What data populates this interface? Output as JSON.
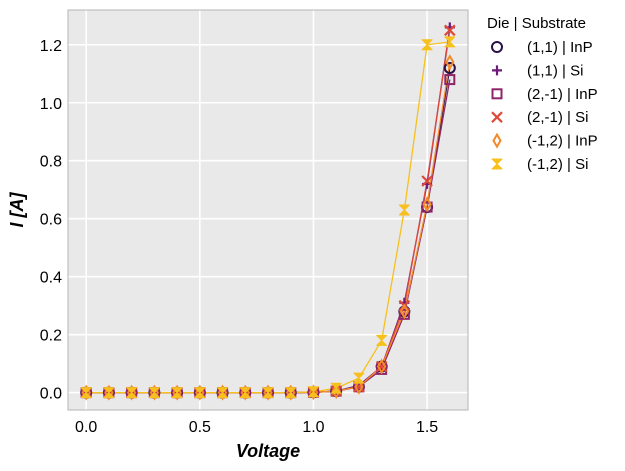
{
  "chart_data": {
    "type": "line",
    "xlabel": "Voltage",
    "ylabel": "I [A]",
    "xlim": [
      -0.08,
      1.68
    ],
    "ylim": [
      -0.06,
      1.32
    ],
    "xticks": [
      0.0,
      0.5,
      1.0,
      1.5
    ],
    "xtick_labels": [
      "0.0",
      "0.5",
      "1.0",
      "1.5"
    ],
    "yticks": [
      0.0,
      0.2,
      0.4,
      0.6,
      0.8,
      1.0,
      1.2
    ],
    "ytick_labels": [
      "0.0",
      "0.2",
      "0.4",
      "0.6",
      "0.8",
      "1.0",
      "1.2"
    ],
    "grid": true,
    "legend": {
      "title": "Die | Substrate",
      "placement": "outside-right"
    },
    "x": [
      0.0,
      0.1,
      0.2,
      0.3,
      0.4,
      0.5,
      0.6,
      0.7,
      0.8,
      0.9,
      1.0,
      1.1,
      1.2,
      1.3,
      1.4,
      1.5,
      1.6
    ],
    "series": [
      {
        "name": "(1,1) | InP",
        "marker": "circle",
        "color": "#2a1148",
        "values": [
          0.0,
          0.0,
          0.0,
          0.0,
          0.0,
          0.0,
          0.0,
          0.0,
          0.0,
          0.0,
          0.001,
          0.005,
          0.02,
          0.09,
          0.28,
          0.64,
          1.12
        ]
      },
      {
        "name": "(1,1) | Si",
        "marker": "plus",
        "color": "#701a7a",
        "values": [
          0.0,
          0.0,
          0.0,
          0.0,
          0.0,
          0.0,
          0.0,
          0.0,
          0.0,
          0.0,
          0.001,
          0.005,
          0.025,
          0.09,
          0.31,
          0.72,
          1.26
        ]
      },
      {
        "name": "(2,-1) | InP",
        "marker": "square",
        "color": "#8f2469",
        "values": [
          0.0,
          0.0,
          0.0,
          0.0,
          0.0,
          0.0,
          0.0,
          0.0,
          0.0,
          0.0,
          0.001,
          0.005,
          0.02,
          0.08,
          0.27,
          0.64,
          1.08
        ]
      },
      {
        "name": "(2,-1) | Si",
        "marker": "x",
        "color": "#dd4a3a",
        "values": [
          0.0,
          0.0,
          0.0,
          0.0,
          0.0,
          0.0,
          0.0,
          0.0,
          0.0,
          0.0,
          0.001,
          0.005,
          0.02,
          0.09,
          0.3,
          0.73,
          1.25
        ]
      },
      {
        "name": "(-1,2) | InP",
        "marker": "diamond",
        "color": "#f28a28",
        "values": [
          0.0,
          0.0,
          0.0,
          0.0,
          0.0,
          0.0,
          0.0,
          0.0,
          0.0,
          0.0,
          0.001,
          0.005,
          0.02,
          0.09,
          0.28,
          0.65,
          1.14
        ]
      },
      {
        "name": "(-1,2) | Si",
        "marker": "hourglass",
        "color": "#f6c01e",
        "values": [
          0.0,
          0.0,
          0.0,
          0.0,
          0.0,
          0.0,
          0.0,
          0.0,
          0.0,
          0.0,
          0.003,
          0.015,
          0.05,
          0.18,
          0.63,
          1.2,
          1.21
        ]
      }
    ]
  }
}
